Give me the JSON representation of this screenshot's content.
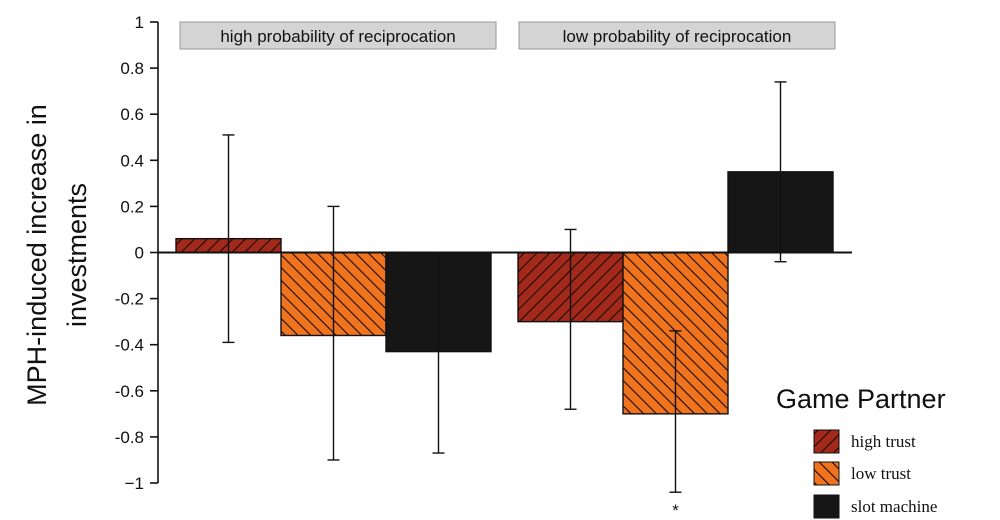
{
  "chart_data": {
    "type": "bar",
    "title": "",
    "xlabel": "",
    "ylabel_lines": [
      "MPH-induced increase in",
      "investments"
    ],
    "ylim": [
      -1,
      1
    ],
    "yticks": [
      1,
      0.8,
      0.6,
      0.4,
      0.2,
      0,
      -0.2,
      -0.4,
      -0.6,
      -0.8,
      -1
    ],
    "ytick_labels": [
      "1",
      "0.8",
      "0.6",
      "0.4",
      "0.2",
      "0",
      "-0.2",
      "-0.4",
      "-0.6",
      "-0.8",
      "−1"
    ],
    "groups": [
      "high probability of reciprocation",
      "low probability of reciprocation"
    ],
    "series": [
      {
        "name": "high trust",
        "color": "#a32a1a",
        "pattern": "hatch",
        "values": [
          0.06,
          -0.3
        ],
        "error_low": [
          -0.39,
          -0.68
        ],
        "error_high": [
          0.51,
          0.1
        ]
      },
      {
        "name": "low trust",
        "color": "#f0731e",
        "pattern": "hatch",
        "values": [
          -0.36,
          -0.7
        ],
        "error_low": [
          -0.9,
          -1.04
        ],
        "error_high": [
          0.2,
          -0.34
        ]
      },
      {
        "name": "slot machine",
        "color": "#161616",
        "pattern": "solid",
        "values": [
          -0.43,
          0.35
        ],
        "error_low": [
          -0.87,
          -0.04
        ],
        "error_high": [
          0.0,
          0.74
        ]
      }
    ],
    "annotations": [
      {
        "text": "*",
        "group": 1,
        "series": 1
      }
    ],
    "legend": {
      "title": "Game Partner",
      "placement": "bottom-right"
    },
    "grid": false
  }
}
